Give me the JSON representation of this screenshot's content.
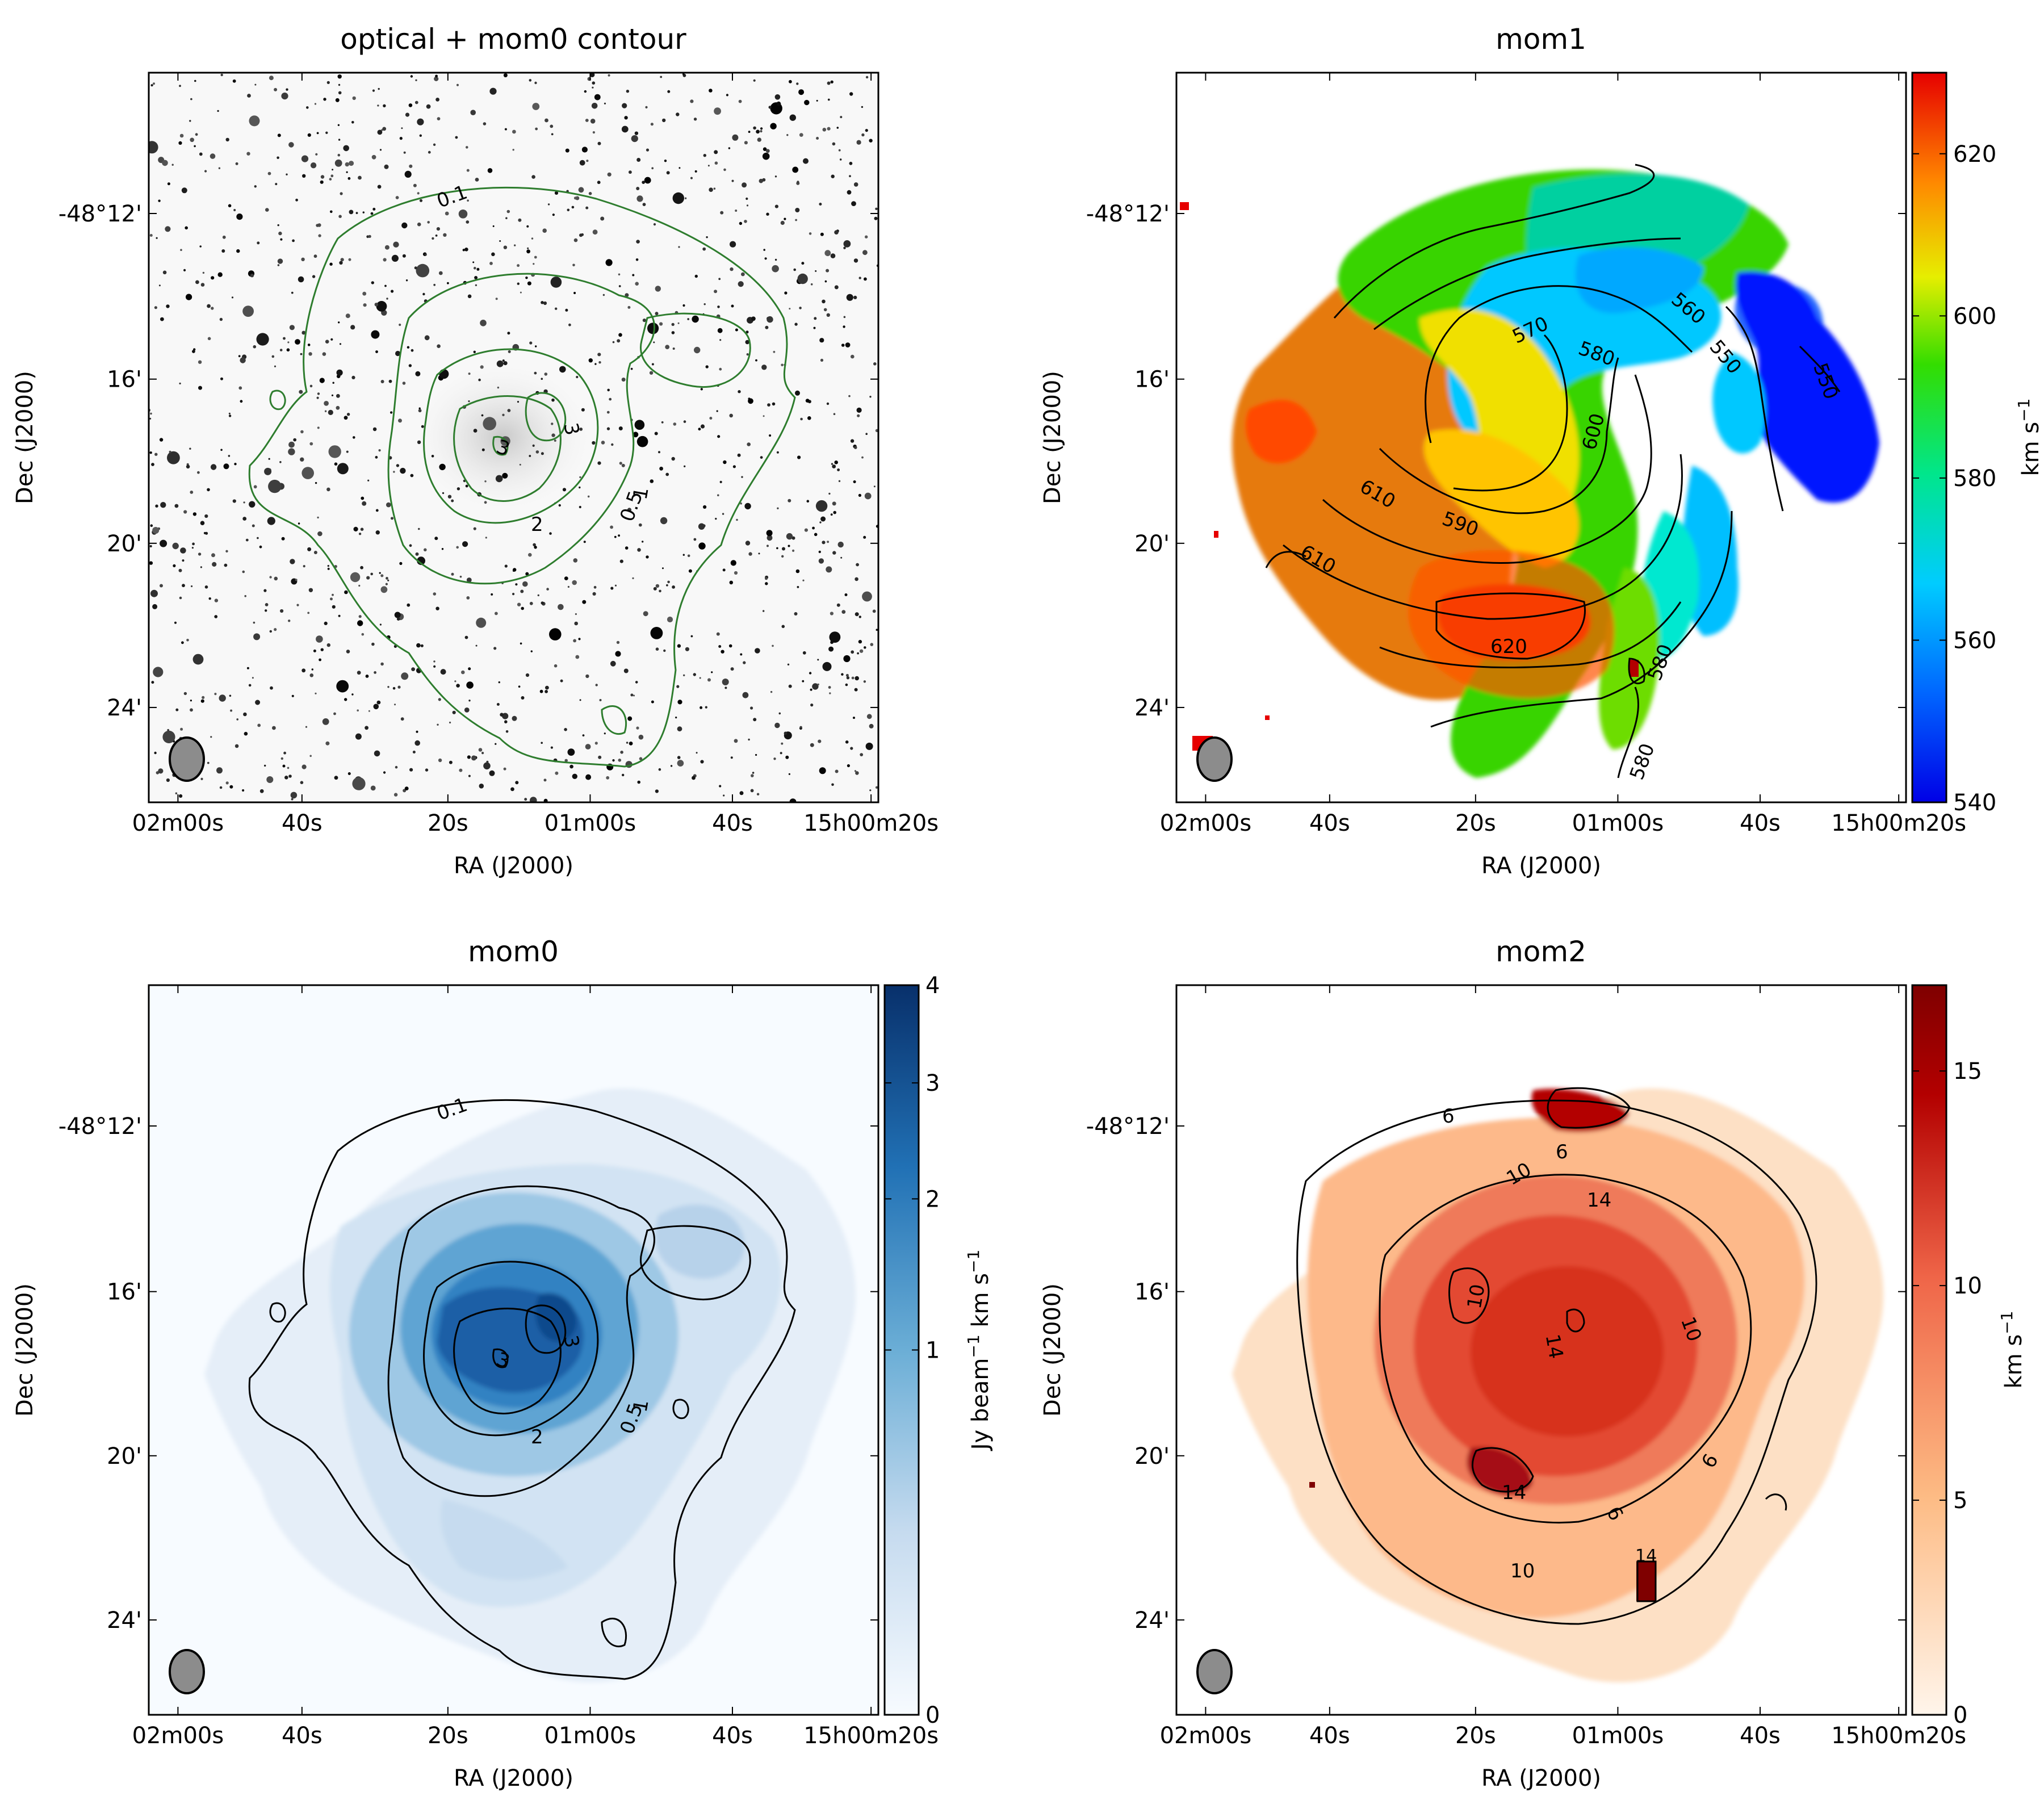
{
  "chart_data": [
    {
      "type": "heatmap",
      "id": "optical",
      "title": "optical + mom0 contour",
      "xlabel": "RA (J2000)",
      "ylabel": "Dec (J2000)",
      "xticks": [
        "02m00s",
        "40s",
        "20s",
        "01m00s",
        "40s",
        "15h00m20s"
      ],
      "yticks": [
        "-48°12'",
        "16'",
        "20'",
        "24'"
      ],
      "colormap": "Greys",
      "contour_color": "#2e7d2e",
      "contour_labels": [
        "0.1",
        "0.5",
        "1",
        "2",
        "3",
        "3"
      ],
      "colorbar": null
    },
    {
      "type": "heatmap",
      "id": "mom1",
      "title": "mom1",
      "xlabel": "RA (J2000)",
      "ylabel": "Dec (J2000)",
      "xticks": [
        "02m00s",
        "40s",
        "20s",
        "01m00s",
        "40s",
        "15h00m20s"
      ],
      "yticks": [
        "-48°12'",
        "16'",
        "20'",
        "24'"
      ],
      "colormap": "jet",
      "contour_color": "#000000",
      "contour_labels": [
        "550",
        "550",
        "560",
        "570",
        "580",
        "580",
        "580",
        "590",
        "600",
        "610",
        "610",
        "620"
      ],
      "colorbar": {
        "label": "km s",
        "label_exponent": "−1",
        "ticks": [
          "540",
          "560",
          "580",
          "600",
          "620"
        ],
        "range": [
          540,
          630
        ]
      }
    },
    {
      "type": "heatmap",
      "id": "mom0",
      "title": "mom0",
      "xlabel": "RA (J2000)",
      "ylabel": "Dec (J2000)",
      "xticks": [
        "02m00s",
        "40s",
        "20s",
        "01m00s",
        "40s",
        "15h00m20s"
      ],
      "yticks": [
        "-48°12'",
        "16'",
        "20'",
        "24'"
      ],
      "colormap": "Blues",
      "contour_color": "#000000",
      "contour_labels": [
        "0.1",
        "0.5",
        "1",
        "2",
        "3",
        "3"
      ],
      "colorbar": {
        "label": "Jy beam",
        "label_exponent": "−1",
        "label_suffix": " km s",
        "label_exponent2": "−1",
        "ticks": [
          "0",
          "1",
          "2",
          "3",
          "4"
        ],
        "range": [
          0,
          4
        ],
        "scale": "sqrt"
      }
    },
    {
      "type": "heatmap",
      "id": "mom2",
      "title": "mom2",
      "xlabel": "RA (J2000)",
      "ylabel": "Dec (J2000)",
      "xticks": [
        "02m00s",
        "40s",
        "20s",
        "01m00s",
        "40s",
        "15h00m20s"
      ],
      "yticks": [
        "-48°12'",
        "16'",
        "20'",
        "24'"
      ],
      "colormap": "OrRd",
      "contour_color": "#000000",
      "contour_labels": [
        "6",
        "6",
        "6",
        "6",
        "10",
        "10",
        "10",
        "10",
        "14",
        "14",
        "14",
        "14"
      ],
      "colorbar": {
        "label": "km s",
        "label_exponent": "−1",
        "ticks": [
          "0",
          "5",
          "10",
          "15"
        ],
        "range": [
          0,
          17
        ]
      }
    }
  ],
  "colors": {
    "axis": "#000000",
    "beam_fill": "#8c8c8c"
  }
}
